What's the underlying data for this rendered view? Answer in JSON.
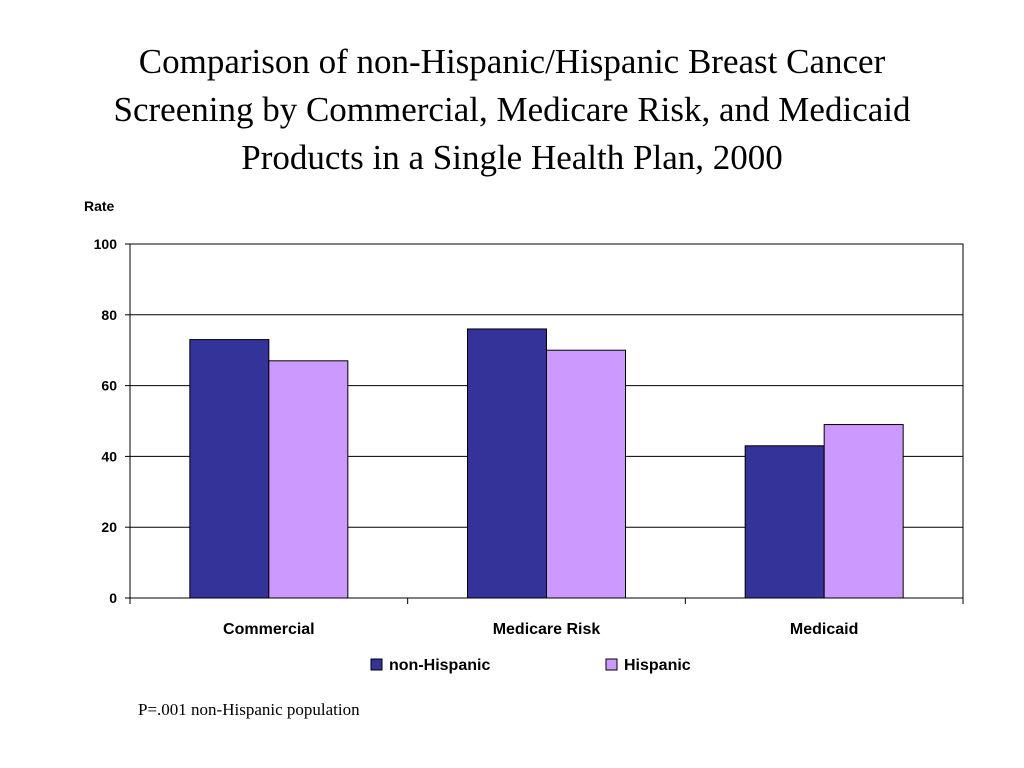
{
  "slide": {
    "footnote": "P=.001 non-Hispanic population"
  },
  "chart_data": {
    "type": "bar",
    "title": "Comparison of non-Hispanic/Hispanic Breast Cancer Screening by Commercial, Medicare Risk, and Medicaid Products in a Single Health Plan, 2000",
    "title_lines": [
      "Comparison of non-Hispanic/Hispanic Breast Cancer",
      "Screening by Commercial, Medicare Risk, and Medicaid",
      "Products in a Single Health Plan, 2000"
    ],
    "xlabel": "",
    "ylabel": "Rate",
    "ylim": [
      0,
      100
    ],
    "yticks": [
      0,
      20,
      40,
      60,
      80,
      100
    ],
    "grid": true,
    "legend_position": "bottom",
    "categories": [
      "Commercial",
      "Medicare Risk",
      "Medicaid"
    ],
    "series": [
      {
        "name": "non-Hispanic",
        "values": [
          73,
          76,
          43
        ],
        "color": "#333399"
      },
      {
        "name": "Hispanic",
        "values": [
          67,
          70,
          49
        ],
        "color": "#cc99ff"
      }
    ]
  }
}
